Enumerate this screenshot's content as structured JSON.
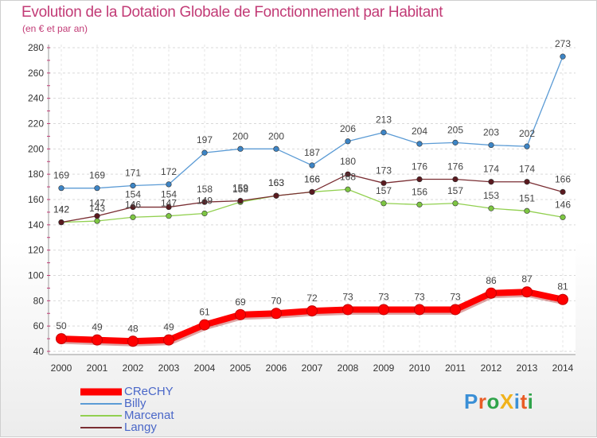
{
  "page": {
    "title": "Evolution de la Dotation Globale de Fonctionnement par Habitant",
    "subtitle": "(en € et par an)"
  },
  "brand": {
    "logo_text": "ProXiti",
    "logo_letter_colors": [
      "#3a8fd6",
      "#e95c25",
      "#2fa34a",
      "#f0b21b",
      "#3a8fd6",
      "#e95c25",
      "#2fa34a"
    ]
  },
  "legend": [
    {
      "label": "CReCHY",
      "color": "#ff0000"
    },
    {
      "label": "Billy",
      "color": "#5b9bd5"
    },
    {
      "label": "Marcenat",
      "color": "#92d050"
    },
    {
      "label": "Langy",
      "color": "#7a2e33"
    }
  ],
  "chart_data": {
    "type": "line",
    "title": "Evolution de la Dotation Globale de Fonctionnement par Habitant",
    "subtitle": "(en € et par an)",
    "xlabel": "",
    "ylabel": "",
    "x": [
      "2000",
      "2001",
      "2002",
      "2003",
      "2004",
      "2005",
      "2006",
      "2007",
      "2008",
      "2009",
      "2010",
      "2011",
      "2012",
      "2013",
      "2014"
    ],
    "ylim": [
      40,
      280
    ],
    "yticks": [
      40,
      60,
      80,
      100,
      120,
      140,
      160,
      180,
      200,
      220,
      240,
      260,
      280
    ],
    "grid": true,
    "legend_position": "bottom-left",
    "series": [
      {
        "name": "CReCHY",
        "color": "#ff0000",
        "marker_fill": "#ff0000",
        "values": [
          50,
          49,
          48,
          49,
          61,
          69,
          70,
          72,
          73,
          73,
          73,
          73,
          86,
          87,
          81
        ],
        "labels": [
          "50",
          "49",
          "48",
          "49",
          "61",
          "69",
          "70",
          "72",
          "73",
          "73",
          "73",
          "73",
          "86",
          "87",
          "81"
        ]
      },
      {
        "name": "Billy",
        "color": "#5b9bd5",
        "marker_fill": "#3d85c6",
        "values": [
          169,
          169,
          171,
          172,
          197,
          200,
          200,
          187,
          206,
          213,
          204,
          205,
          203,
          202,
          273
        ],
        "labels": [
          "169",
          "169",
          "171",
          "172",
          "197",
          "200",
          "200",
          "187",
          "206",
          "213",
          "204",
          "205",
          "203",
          "202",
          "273"
        ]
      },
      {
        "name": "Marcenat",
        "color": "#92d050",
        "marker_fill": "#7dc642",
        "values": [
          142,
          143,
          146,
          147,
          149,
          158,
          163,
          166,
          168,
          157,
          156,
          157,
          153,
          151,
          146
        ],
        "labels": [
          "142",
          "143",
          "146",
          "147",
          "149",
          "158",
          "163",
          "166",
          "168",
          "157",
          "156",
          "157",
          "153",
          "151",
          "146"
        ]
      },
      {
        "name": "Langy",
        "color": "#7a2e33",
        "marker_fill": "#5a1a1f",
        "values": [
          142,
          147,
          154,
          154,
          158,
          159,
          163,
          166,
          180,
          173,
          176,
          176,
          174,
          174,
          166
        ],
        "labels": [
          "142",
          "147",
          "154",
          "154",
          "158",
          "159",
          "163",
          "166",
          "180",
          "173",
          "176",
          "176",
          "174",
          "174",
          "166"
        ]
      }
    ]
  }
}
